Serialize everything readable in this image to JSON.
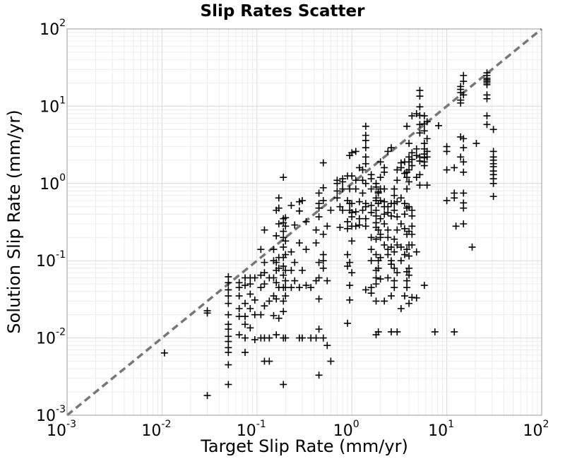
{
  "chart_data": {
    "type": "scatter",
    "title": "Slip Rates Scatter",
    "xlabel": "Target Slip Rate (mm/yr)",
    "ylabel": "Solution Slip Rate (mm/yr)",
    "x_scale": "log",
    "y_scale": "log",
    "xlim": [
      0.001,
      100
    ],
    "ylim": [
      0.001,
      100
    ],
    "grid": true,
    "marker": "+",
    "marker_color": "#000000",
    "reference_line": {
      "style": "dashed",
      "color": "#777777",
      "from": [
        0.001,
        0.001
      ],
      "to": [
        100,
        100
      ]
    },
    "x_ticks": [
      {
        "base": "10",
        "exp": "-3"
      },
      {
        "base": "10",
        "exp": "-2"
      },
      {
        "base": "10",
        "exp": "-1"
      },
      {
        "base": "10",
        "exp": "0"
      },
      {
        "base": "10",
        "exp": "1"
      },
      {
        "base": "10",
        "exp": "2"
      }
    ],
    "y_ticks": [
      {
        "base": "10",
        "exp": "-3"
      },
      {
        "base": "10",
        "exp": "-2"
      },
      {
        "base": "10",
        "exp": "-1"
      },
      {
        "base": "10",
        "exp": "0"
      },
      {
        "base": "10",
        "exp": "1"
      },
      {
        "base": "10",
        "exp": "2"
      }
    ],
    "points": [
      [
        0.0106,
        0.0064
      ],
      [
        0.03,
        0.0018
      ],
      [
        0.03,
        0.021
      ],
      [
        0.03,
        0.0225
      ],
      [
        0.05,
        0.0025
      ],
      [
        0.05,
        0.0045
      ],
      [
        0.05,
        0.0065
      ],
      [
        0.05,
        0.0075
      ],
      [
        0.05,
        0.009
      ],
      [
        0.05,
        0.0105
      ],
      [
        0.05,
        0.013
      ],
      [
        0.05,
        0.015
      ],
      [
        0.05,
        0.02
      ],
      [
        0.05,
        0.028
      ],
      [
        0.05,
        0.035
      ],
      [
        0.05,
        0.042
      ],
      [
        0.05,
        0.052
      ],
      [
        0.05,
        0.062
      ],
      [
        0.065,
        0.011
      ],
      [
        0.065,
        0.019
      ],
      [
        0.065,
        0.024
      ],
      [
        0.065,
        0.035
      ],
      [
        0.065,
        0.045
      ],
      [
        0.065,
        0.052
      ],
      [
        0.075,
        0.0065
      ],
      [
        0.075,
        0.01
      ],
      [
        0.075,
        0.015
      ],
      [
        0.075,
        0.019
      ],
      [
        0.075,
        0.028
      ],
      [
        0.075,
        0.048
      ],
      [
        0.075,
        0.06
      ],
      [
        0.085,
        0.0135
      ],
      [
        0.085,
        0.024
      ],
      [
        0.085,
        0.037
      ],
      [
        0.085,
        0.05
      ],
      [
        0.085,
        0.06
      ],
      [
        0.095,
        0.0095
      ],
      [
        0.095,
        0.02
      ],
      [
        0.095,
        0.031
      ],
      [
        0.095,
        0.06
      ],
      [
        0.11,
        0.01
      ],
      [
        0.11,
        0.02
      ],
      [
        0.11,
        0.045
      ],
      [
        0.11,
        0.065
      ],
      [
        0.11,
        0.14
      ],
      [
        0.12,
        0.005
      ],
      [
        0.12,
        0.01
      ],
      [
        0.12,
        0.026
      ],
      [
        0.12,
        0.05
      ],
      [
        0.12,
        0.07
      ],
      [
        0.12,
        0.095
      ],
      [
        0.12,
        0.25
      ],
      [
        0.135,
        0.005
      ],
      [
        0.135,
        0.01
      ],
      [
        0.135,
        0.03
      ],
      [
        0.135,
        0.06
      ],
      [
        0.15,
        0.0195
      ],
      [
        0.15,
        0.035
      ],
      [
        0.15,
        0.06
      ],
      [
        0.15,
        0.1
      ],
      [
        0.15,
        0.14
      ],
      [
        0.16,
        0.011
      ],
      [
        0.16,
        0.032
      ],
      [
        0.16,
        0.052
      ],
      [
        0.16,
        0.075
      ],
      [
        0.16,
        0.095
      ],
      [
        0.16,
        0.21
      ],
      [
        0.16,
        0.45
      ],
      [
        0.17,
        0.018
      ],
      [
        0.17,
        0.045
      ],
      [
        0.17,
        0.08
      ],
      [
        0.17,
        0.11
      ],
      [
        0.17,
        0.3
      ],
      [
        0.17,
        0.48
      ],
      [
        0.17,
        0.65
      ],
      [
        0.19,
        0.0025
      ],
      [
        0.19,
        0.01
      ],
      [
        0.19,
        0.022
      ],
      [
        0.19,
        0.03
      ],
      [
        0.19,
        0.045
      ],
      [
        0.19,
        0.065
      ],
      [
        0.19,
        0.085
      ],
      [
        0.19,
        0.11
      ],
      [
        0.19,
        0.15
      ],
      [
        0.19,
        0.2
      ],
      [
        0.19,
        0.24
      ],
      [
        0.19,
        0.31
      ],
      [
        0.19,
        0.35
      ],
      [
        0.19,
        1.2
      ],
      [
        0.2,
        0.01
      ],
      [
        0.2,
        0.035
      ],
      [
        0.2,
        0.045
      ],
      [
        0.2,
        0.055
      ],
      [
        0.2,
        0.075
      ],
      [
        0.2,
        0.12
      ],
      [
        0.2,
        0.18
      ],
      [
        0.2,
        0.28
      ],
      [
        0.2,
        0.36
      ],
      [
        0.23,
        0.045
      ],
      [
        0.23,
        0.075
      ],
      [
        0.23,
        0.13
      ],
      [
        0.23,
        0.52
      ],
      [
        0.25,
        0.055
      ],
      [
        0.25,
        0.095
      ],
      [
        0.25,
        0.29
      ],
      [
        0.28,
        0.01
      ],
      [
        0.28,
        0.045
      ],
      [
        0.28,
        0.17
      ],
      [
        0.28,
        0.44
      ],
      [
        0.28,
        0.58
      ],
      [
        0.3,
        0.01
      ],
      [
        0.3,
        0.075
      ],
      [
        0.3,
        0.6
      ],
      [
        0.33,
        0.048
      ],
      [
        0.33,
        0.14
      ],
      [
        0.33,
        0.32
      ],
      [
        0.37,
        0.01
      ],
      [
        0.37,
        0.045
      ],
      [
        0.42,
        0.01
      ],
      [
        0.42,
        0.055
      ],
      [
        0.42,
        0.17
      ],
      [
        0.42,
        0.25
      ],
      [
        0.45,
        0.0033
      ],
      [
        0.45,
        0.013
      ],
      [
        0.45,
        0.032
      ],
      [
        0.45,
        0.06
      ],
      [
        0.45,
        0.095
      ],
      [
        0.45,
        0.37
      ],
      [
        0.45,
        0.48
      ],
      [
        0.45,
        0.55
      ],
      [
        0.45,
        0.75
      ],
      [
        0.5,
        0.01
      ],
      [
        0.5,
        0.08
      ],
      [
        0.5,
        0.1
      ],
      [
        0.5,
        0.12
      ],
      [
        0.5,
        0.22
      ],
      [
        0.5,
        0.6
      ],
      [
        0.5,
        0.88
      ],
      [
        0.5,
        1.85
      ],
      [
        0.55,
        0.008
      ],
      [
        0.55,
        0.055
      ],
      [
        0.55,
        0.28
      ],
      [
        0.6,
        0.005
      ],
      [
        0.6,
        0.45
      ],
      [
        0.7,
        0.65
      ],
      [
        0.7,
        0.8
      ],
      [
        0.7,
        1.0
      ],
      [
        0.7,
        1.1
      ],
      [
        0.75,
        0.27
      ],
      [
        0.75,
        0.5
      ],
      [
        0.8,
        0.45
      ],
      [
        0.8,
        0.85
      ],
      [
        0.8,
        1.05
      ],
      [
        0.8,
        1.15
      ],
      [
        0.9,
        0.0155
      ],
      [
        0.9,
        0.085
      ],
      [
        0.9,
        0.12
      ],
      [
        0.9,
        0.26
      ],
      [
        0.9,
        0.32
      ],
      [
        0.9,
        0.6
      ],
      [
        0.9,
        1.25
      ],
      [
        0.95,
        0.031
      ],
      [
        0.95,
        0.048
      ],
      [
        0.95,
        0.095
      ],
      [
        0.95,
        0.45
      ],
      [
        0.95,
        0.55
      ],
      [
        0.95,
        0.85
      ],
      [
        0.95,
        2.3
      ],
      [
        1.0,
        0.07
      ],
      [
        1.0,
        0.18
      ],
      [
        1.0,
        0.28
      ],
      [
        1.0,
        0.37
      ],
      [
        1.0,
        0.42
      ],
      [
        1.0,
        0.55
      ],
      [
        1.0,
        1.25
      ],
      [
        1.0,
        2.5
      ],
      [
        1.1,
        0.28
      ],
      [
        1.1,
        0.43
      ],
      [
        1.1,
        0.85
      ],
      [
        1.1,
        1.1
      ],
      [
        1.1,
        2.6
      ],
      [
        1.2,
        0.29
      ],
      [
        1.2,
        0.35
      ],
      [
        1.2,
        0.58
      ],
      [
        1.2,
        1.6
      ],
      [
        1.3,
        0.45
      ],
      [
        1.3,
        0.75
      ],
      [
        1.3,
        1.1
      ],
      [
        1.3,
        1.5
      ],
      [
        1.4,
        0.042
      ],
      [
        1.4,
        0.28
      ],
      [
        1.4,
        0.35
      ],
      [
        1.4,
        0.5
      ],
      [
        1.4,
        0.55
      ],
      [
        1.4,
        1.0
      ],
      [
        1.4,
        1.8
      ],
      [
        1.4,
        2.2
      ],
      [
        1.4,
        2.9
      ],
      [
        1.4,
        3.6
      ],
      [
        1.4,
        4.2
      ],
      [
        1.4,
        5.5
      ],
      [
        1.6,
        0.038
      ],
      [
        1.6,
        0.045
      ],
      [
        1.6,
        0.1
      ],
      [
        1.6,
        0.14
      ],
      [
        1.6,
        0.2
      ],
      [
        1.6,
        0.42
      ],
      [
        1.6,
        0.52
      ],
      [
        1.6,
        0.85
      ],
      [
        1.6,
        1.15
      ],
      [
        1.6,
        1.3
      ],
      [
        1.8,
        0.011
      ],
      [
        1.8,
        0.03
      ],
      [
        1.8,
        0.05
      ],
      [
        1.8,
        0.06
      ],
      [
        1.8,
        0.075
      ],
      [
        1.8,
        0.12
      ],
      [
        1.8,
        0.19
      ],
      [
        1.8,
        0.27
      ],
      [
        1.8,
        0.31
      ],
      [
        1.8,
        0.38
      ],
      [
        1.8,
        0.45
      ],
      [
        1.8,
        0.6
      ],
      [
        1.8,
        0.65
      ],
      [
        1.8,
        0.9
      ],
      [
        1.8,
        1.0
      ],
      [
        1.9,
        0.012
      ],
      [
        1.9,
        0.08
      ],
      [
        1.9,
        0.1
      ],
      [
        1.9,
        0.25
      ],
      [
        1.9,
        0.55
      ],
      [
        1.9,
        0.75
      ],
      [
        1.9,
        0.78
      ],
      [
        2.0,
        0.058
      ],
      [
        2.0,
        0.11
      ],
      [
        2.0,
        0.2
      ],
      [
        2.0,
        0.22
      ],
      [
        2.0,
        0.35
      ],
      [
        2.0,
        0.6
      ],
      [
        2.0,
        0.85
      ],
      [
        2.0,
        1.2
      ],
      [
        2.0,
        1.9
      ],
      [
        2.2,
        0.03
      ],
      [
        2.2,
        0.16
      ],
      [
        2.2,
        0.3
      ],
      [
        2.2,
        0.4
      ],
      [
        2.2,
        0.5
      ],
      [
        2.2,
        0.58
      ],
      [
        2.2,
        0.85
      ],
      [
        2.2,
        1.4
      ],
      [
        2.2,
        1.6
      ],
      [
        2.4,
        0.06
      ],
      [
        2.4,
        0.12
      ],
      [
        2.4,
        0.14
      ],
      [
        2.4,
        0.2
      ],
      [
        2.4,
        0.25
      ],
      [
        2.4,
        0.42
      ],
      [
        2.4,
        0.5
      ],
      [
        2.4,
        2.6
      ],
      [
        2.6,
        0.012
      ],
      [
        2.6,
        0.035
      ],
      [
        2.6,
        0.09
      ],
      [
        2.6,
        0.1
      ],
      [
        2.6,
        0.15
      ],
      [
        2.6,
        0.38
      ],
      [
        2.6,
        0.55
      ],
      [
        2.6,
        2.9
      ],
      [
        2.8,
        0.045
      ],
      [
        2.8,
        0.055
      ],
      [
        2.8,
        0.08
      ],
      [
        2.8,
        0.13
      ],
      [
        2.8,
        0.19
      ],
      [
        2.8,
        0.45
      ],
      [
        2.8,
        0.55
      ],
      [
        2.8,
        0.7
      ],
      [
        2.8,
        0.85
      ],
      [
        3.0,
        0.012
      ],
      [
        3.0,
        0.07
      ],
      [
        3.0,
        0.16
      ],
      [
        3.0,
        0.25
      ],
      [
        3.0,
        0.37
      ],
      [
        3.0,
        0.58
      ],
      [
        3.0,
        1.1
      ],
      [
        3.0,
        1.5
      ],
      [
        3.3,
        0.024
      ],
      [
        3.3,
        0.1
      ],
      [
        3.3,
        0.15
      ],
      [
        3.3,
        0.3
      ],
      [
        3.3,
        0.65
      ],
      [
        3.3,
        1.6
      ],
      [
        3.3,
        1.85
      ],
      [
        3.6,
        0.035
      ],
      [
        3.6,
        0.12
      ],
      [
        3.6,
        0.26
      ],
      [
        3.6,
        0.4
      ],
      [
        3.6,
        0.55
      ],
      [
        3.6,
        1.35
      ],
      [
        3.6,
        1.9
      ],
      [
        3.8,
        0.045
      ],
      [
        3.8,
        0.055
      ],
      [
        3.8,
        0.072
      ],
      [
        3.8,
        0.14
      ],
      [
        3.8,
        0.22
      ],
      [
        3.8,
        0.48
      ],
      [
        3.8,
        0.85
      ],
      [
        3.8,
        1.2
      ],
      [
        3.8,
        1.4
      ],
      [
        3.8,
        5.5
      ],
      [
        4.0,
        0.028
      ],
      [
        4.0,
        0.065
      ],
      [
        4.0,
        0.08
      ],
      [
        4.0,
        0.115
      ],
      [
        4.0,
        0.16
      ],
      [
        4.0,
        0.24
      ],
      [
        4.0,
        0.5
      ],
      [
        4.0,
        1.05
      ],
      [
        4.0,
        1.5
      ],
      [
        4.0,
        1.9
      ],
      [
        4.0,
        2.2
      ],
      [
        4.0,
        3.3
      ],
      [
        4.3,
        0.0335
      ],
      [
        4.3,
        0.16
      ],
      [
        4.3,
        0.22
      ],
      [
        4.3,
        0.28
      ],
      [
        4.3,
        0.38
      ],
      [
        4.3,
        0.45
      ],
      [
        4.3,
        1.7
      ],
      [
        4.3,
        2.05
      ],
      [
        4.3,
        2.5
      ],
      [
        4.3,
        7.5
      ],
      [
        4.8,
        0.033
      ],
      [
        4.8,
        0.13
      ],
      [
        4.8,
        1.2
      ],
      [
        4.8,
        2.3
      ],
      [
        4.8,
        2.8
      ],
      [
        4.8,
        8.0
      ],
      [
        5.2,
        0.95
      ],
      [
        5.2,
        1.3
      ],
      [
        5.2,
        1.95
      ],
      [
        5.2,
        2.2
      ],
      [
        5.2,
        4.5
      ],
      [
        5.2,
        5.8
      ],
      [
        5.2,
        7.6
      ],
      [
        5.2,
        9.8
      ],
      [
        5.2,
        13.5
      ],
      [
        5.2,
        16.0
      ],
      [
        5.8,
        0.048
      ],
      [
        5.8,
        1.7
      ],
      [
        5.8,
        1.9
      ],
      [
        5.8,
        2.15
      ],
      [
        5.8,
        2.4
      ],
      [
        5.8,
        2.8
      ],
      [
        5.8,
        3.3
      ],
      [
        5.8,
        4.8
      ],
      [
        5.8,
        5.9
      ],
      [
        5.8,
        7.5
      ],
      [
        6.2,
        0.95
      ],
      [
        6.2,
        2.2
      ],
      [
        6.2,
        2.6
      ],
      [
        6.2,
        3.8
      ],
      [
        6.2,
        6.3
      ],
      [
        7.5,
        0.012
      ],
      [
        8.2,
        5.6
      ],
      [
        10.0,
        0.6
      ],
      [
        10.0,
        1.5
      ],
      [
        10.0,
        2.6
      ],
      [
        10.0,
        3.0
      ],
      [
        12.0,
        0.012
      ],
      [
        12.0,
        0.65
      ],
      [
        12.0,
        0.75
      ],
      [
        12.0,
        1.6
      ],
      [
        12.5,
        0.28
      ],
      [
        14.0,
        2.2
      ],
      [
        14.0,
        4.0
      ],
      [
        14.0,
        11.0
      ],
      [
        14.0,
        12.0
      ],
      [
        14.0,
        15.0
      ],
      [
        14.0,
        16.5
      ],
      [
        14.0,
        18.0
      ],
      [
        15.0,
        0.3
      ],
      [
        15.0,
        0.48
      ],
      [
        15.0,
        0.56
      ],
      [
        15.0,
        0.75
      ],
      [
        15.0,
        1.4
      ],
      [
        15.0,
        1.9
      ],
      [
        15.0,
        2.9
      ],
      [
        15.0,
        3.8
      ],
      [
        15.0,
        14.0
      ],
      [
        15.0,
        21.0
      ],
      [
        15.0,
        25.0
      ],
      [
        18.5,
        0.15
      ],
      [
        20.5,
        3.3
      ],
      [
        26.5,
        5.8
      ],
      [
        26.5,
        7.5
      ],
      [
        26.5,
        12.5
      ],
      [
        26.5,
        14.0
      ],
      [
        26.5,
        19.0
      ],
      [
        26.5,
        20.0
      ],
      [
        26.5,
        21.0
      ],
      [
        26.5,
        22.0
      ],
      [
        26.5,
        23.0
      ],
      [
        26.5,
        25.0
      ],
      [
        26.5,
        27.0
      ],
      [
        31.0,
        0.68
      ],
      [
        31.0,
        1.0
      ],
      [
        31.0,
        1.15
      ],
      [
        31.0,
        1.3
      ],
      [
        31.0,
        1.45
      ],
      [
        31.0,
        1.65
      ],
      [
        31.0,
        1.8
      ],
      [
        31.0,
        2.0
      ],
      [
        31.0,
        2.2
      ],
      [
        31.0,
        2.6
      ],
      [
        31.0,
        5.0
      ]
    ]
  }
}
